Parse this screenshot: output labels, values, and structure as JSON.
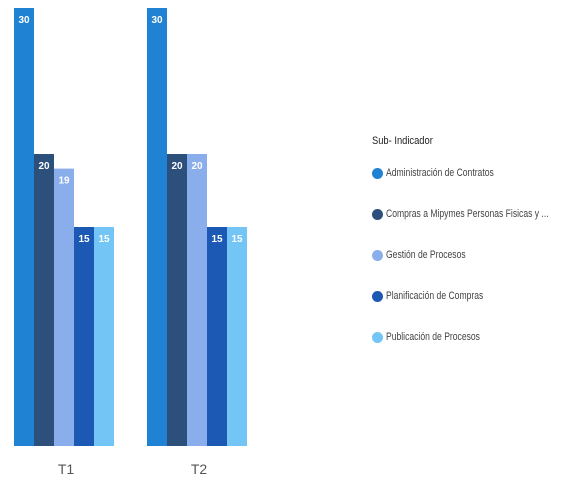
{
  "chart_data": {
    "type": "bar",
    "categories": [
      "T1",
      "T2"
    ],
    "ylim": [
      0,
      30
    ],
    "grid": false,
    "legend_position": "right",
    "legend_title": "Sub- Indicador",
    "series": [
      {
        "name": "Administración de Contratos",
        "values": [
          30,
          30
        ],
        "color": "#1f82d3",
        "labels": [
          "30",
          "30"
        ]
      },
      {
        "name": "Compras a Mipymes Personas Fisicas y ...",
        "values": [
          20,
          20
        ],
        "color": "#2c4f7b",
        "labels": [
          "20",
          "20"
        ]
      },
      {
        "name": "Gestión de Procesos",
        "values": [
          19,
          20
        ],
        "color": "#8aaeeb",
        "labels": [
          "19",
          "20"
        ]
      },
      {
        "name": "Planificación de Compras",
        "values": [
          15,
          15
        ],
        "color": "#1c59b5",
        "labels": [
          "15",
          "15"
        ]
      },
      {
        "name": "Publicación de Procesos",
        "values": [
          15,
          15
        ],
        "color": "#72c5f5",
        "labels": [
          "15",
          "15"
        ]
      }
    ]
  },
  "legend": {
    "title": "Sub- Indicador",
    "items": [
      {
        "label": "Administración de Contratos",
        "color": "#1f82d3"
      },
      {
        "label": "Compras a Mipymes Personas Fisicas y ...",
        "color": "#2c4f7b"
      },
      {
        "label": "Gestión de Procesos",
        "color": "#8aaeeb"
      },
      {
        "label": "Planificación de Compras",
        "color": "#1c59b5"
      },
      {
        "label": "Publicación de Procesos",
        "color": "#72c5f5"
      }
    ]
  }
}
